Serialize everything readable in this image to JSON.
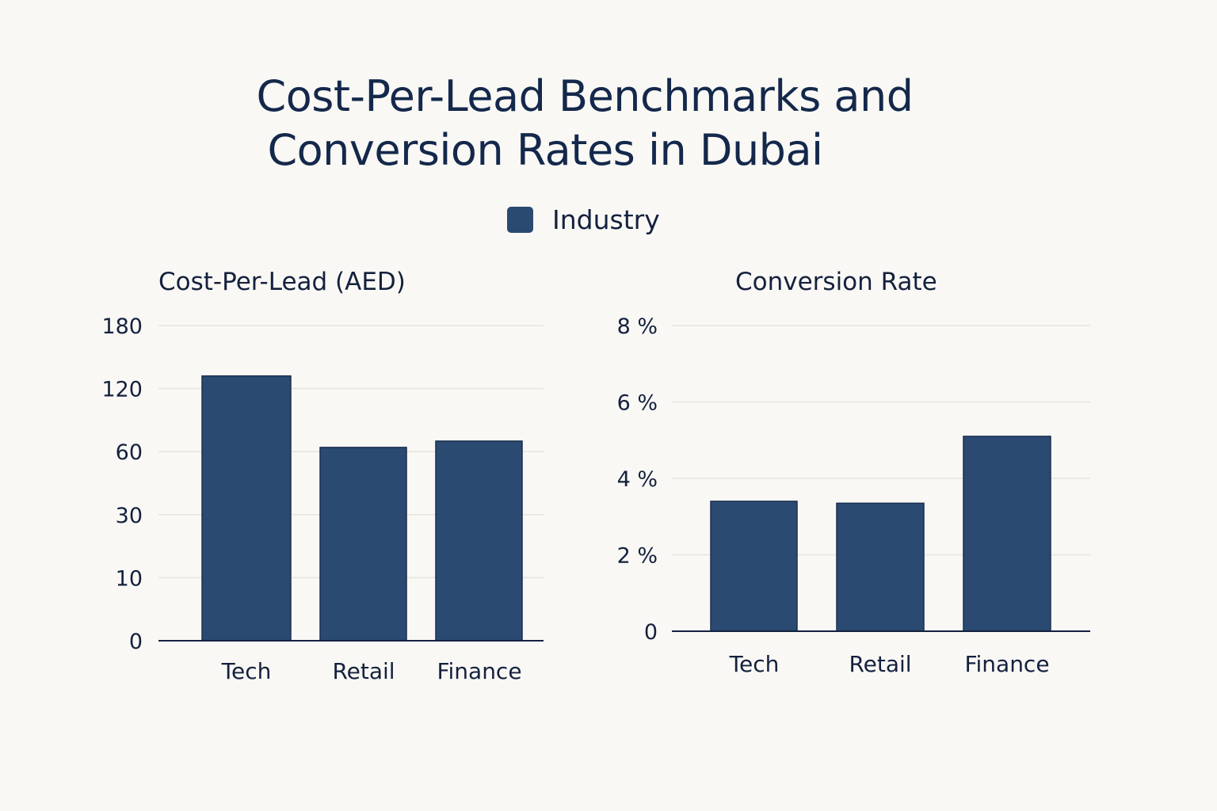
{
  "title_line1": "Cost-Per-Lead Benchmarks and",
  "title_line2": "Conversion Rates in Dubai",
  "legend": {
    "label": "Industry",
    "color": "#2b4a72"
  },
  "colors": {
    "bar": "#2b4a72",
    "bar_edge": "#1a2f50",
    "grid": "#e6e4df",
    "axis": "#14213d"
  },
  "chart_data": [
    {
      "type": "bar",
      "title": "Cost-Per-Lead (AED)",
      "categories": [
        "Tech",
        "Retail",
        "Finance"
      ],
      "series": [
        {
          "name": "Industry",
          "values": [
            132,
            64,
            70
          ]
        }
      ],
      "yticks": [
        "0",
        "10",
        "30",
        "60",
        "120",
        "180"
      ],
      "ytick_values": [
        0,
        10,
        30,
        60,
        120,
        180
      ],
      "ylim": [
        0,
        180
      ],
      "xlabel": "",
      "ylabel": "",
      "grid": true,
      "legend": "top-center"
    },
    {
      "type": "bar",
      "title": "Conversion Rate",
      "categories": [
        "Tech",
        "Retail",
        "Finance"
      ],
      "series": [
        {
          "name": "Industry",
          "values": [
            3.4,
            3.35,
            5.1
          ]
        }
      ],
      "yticks": [
        "0",
        "2 %",
        "4 %",
        "6 %",
        "8 %"
      ],
      "ytick_values": [
        0,
        2,
        4,
        6,
        8
      ],
      "ylim": [
        0,
        8
      ],
      "xlabel": "",
      "ylabel": "",
      "grid": true,
      "legend": "top-center"
    }
  ]
}
